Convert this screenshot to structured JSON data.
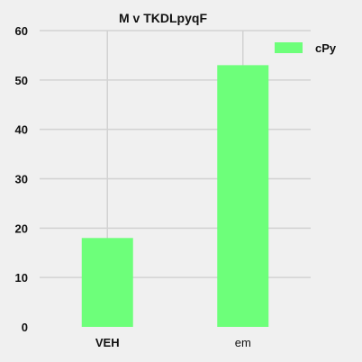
{
  "chart_data": {
    "type": "bar",
    "title": "M v TKDLpyqF",
    "categories": [
      "VEH",
      "em"
    ],
    "category_bold": [
      true,
      false
    ],
    "series": [
      {
        "name": "cPy",
        "values": [
          18,
          53
        ],
        "color": "#6dff7a"
      }
    ],
    "ylim": [
      0,
      60
    ],
    "yticks": [
      0,
      10,
      20,
      30,
      40,
      50,
      60
    ],
    "xlabel": "",
    "ylabel": "",
    "grid": true,
    "legend": "top-right",
    "background": "#f0f0f0",
    "grid_color": "#d2d2d2"
  }
}
